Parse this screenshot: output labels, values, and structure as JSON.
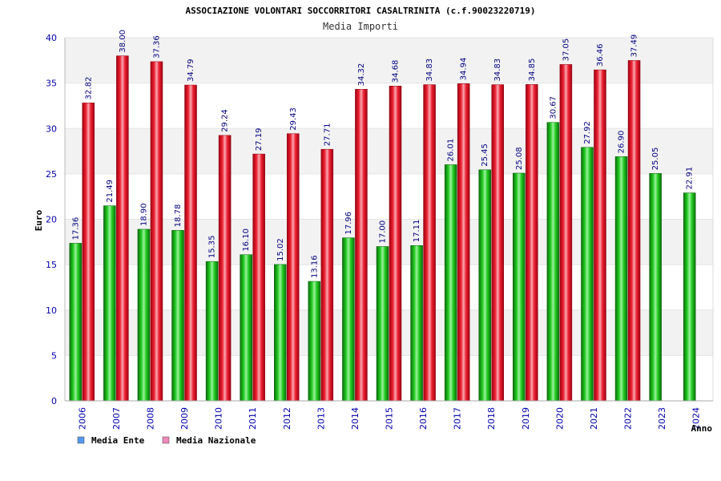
{
  "chart_data": {
    "type": "bar",
    "title": "ASSOCIAZIONE VOLONTARI SOCCORRITORI CASALTRINITA (c.f.90023220719)",
    "subtitle": "Media Importi",
    "xlabel": "Anno",
    "ylabel": "Euro",
    "ylim": [
      0,
      40
    ],
    "yticks": [
      0,
      5,
      10,
      15,
      20,
      25,
      30,
      35,
      40
    ],
    "grid": true,
    "legend_position": "bottom-left",
    "categories": [
      "2006",
      "2007",
      "2008",
      "2009",
      "2010",
      "2011",
      "2012",
      "2013",
      "2014",
      "2015",
      "2016",
      "2017",
      "2018",
      "2019",
      "2020",
      "2021",
      "2022",
      "2023",
      "2024"
    ],
    "series": [
      {
        "name": "Media Ente",
        "color": "#22bb22",
        "legend_color": "#5599ee",
        "values": [
          17.36,
          21.49,
          18.9,
          18.78,
          15.35,
          16.1,
          15.02,
          13.16,
          17.96,
          17.0,
          17.11,
          26.01,
          25.45,
          25.08,
          30.67,
          27.92,
          26.9,
          25.05,
          22.91
        ],
        "labels": [
          "17.36",
          "21.49",
          "18.90",
          "18.78",
          "15.35",
          "16.10",
          "15.02",
          "13.16",
          "17.96",
          "17.00",
          "17.11",
          "26.01",
          "25.45",
          "25.08",
          "30.67",
          "27.92",
          "26.90",
          "25.05",
          "22.91"
        ]
      },
      {
        "name": "Media Nazionale",
        "color": "#ee2233",
        "legend_color": "#ee88bb",
        "values": [
          32.82,
          38.0,
          37.36,
          34.79,
          29.24,
          27.19,
          29.43,
          27.71,
          34.32,
          34.68,
          34.83,
          34.94,
          34.83,
          34.85,
          37.05,
          36.46,
          37.49,
          null,
          null
        ],
        "labels": [
          "32.82",
          "38.00",
          "37.36",
          "34.79",
          "29.24",
          "27.19",
          "29.43",
          "27.71",
          "34.32",
          "34.68",
          "34.83",
          "34.94",
          "34.83",
          "34.85",
          "37.05",
          "36.46",
          "37.49",
          null,
          null
        ]
      }
    ]
  }
}
